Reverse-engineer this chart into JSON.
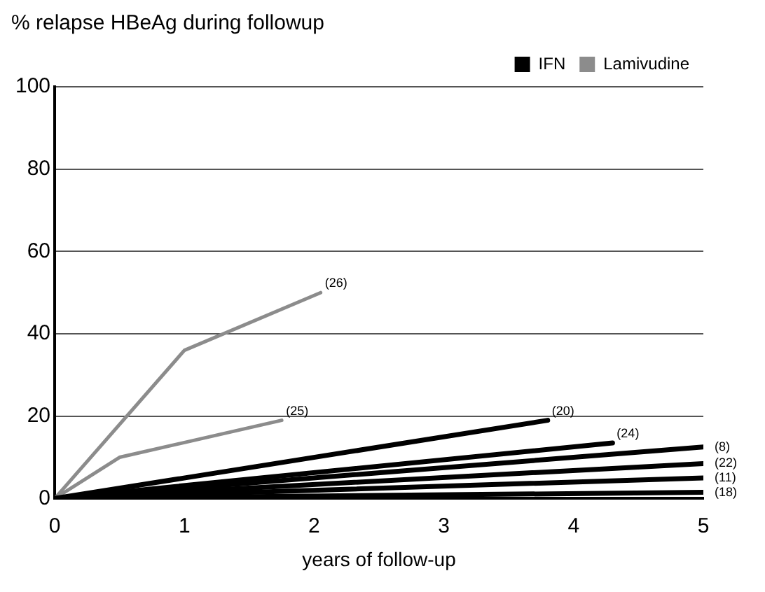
{
  "chart_data": {
    "type": "line",
    "title": "% relapse HBeAg during followup",
    "xlabel": "years of follow-up",
    "xlim": [
      0,
      5
    ],
    "xticks": [
      0,
      1,
      2,
      3,
      4,
      5
    ],
    "ylim": [
      0,
      100
    ],
    "yticks": [
      0,
      20,
      40,
      60,
      80,
      100
    ],
    "grid": "y",
    "legend": "top right",
    "marker": "none",
    "line_style": "solid",
    "series": [
      {
        "name": "IFN",
        "color": "#000000",
        "x": [
          0,
          3.8
        ],
        "values": [
          0,
          19
        ]
      },
      {
        "color": "#000000",
        "x": [
          0,
          4.3
        ],
        "values": [
          0,
          13.5
        ]
      },
      {
        "color": "#000000",
        "x": [
          0,
          5
        ],
        "values": [
          0,
          12.5
        ]
      },
      {
        "color": "#000000",
        "x": [
          0,
          5
        ],
        "values": [
          0,
          8.5
        ]
      },
      {
        "color": "#000000",
        "x": [
          0,
          5
        ],
        "values": [
          0,
          5
        ]
      },
      {
        "color": "#000000",
        "x": [
          0,
          5
        ],
        "values": [
          0,
          1.5
        ]
      },
      {
        "name": "Lamivudine",
        "color": "#8c8c8c",
        "x": [
          0,
          1,
          2.05
        ],
        "values": [
          0,
          36,
          50
        ]
      },
      {
        "color": "#8c8c8c",
        "x": [
          0,
          0.5,
          1.75
        ],
        "values": [
          0,
          10,
          19
        ]
      }
    ],
    "annotations": [
      {
        "text": "(26)",
        "x": 2.05,
        "y": 50
      },
      {
        "text": "(25)",
        "x": 1.75,
        "y": 19
      },
      {
        "text": "(20)",
        "x": 3.8,
        "y": 19
      },
      {
        "text": "(24)",
        "x": 4.3,
        "y": 13.5
      },
      {
        "text": "(8)",
        "x": 5,
        "y": 12.5
      },
      {
        "text": "(22)",
        "x": 5,
        "y": 8.5
      },
      {
        "text": "(11)",
        "x": 5,
        "y": 5
      },
      {
        "text": "(18)",
        "x": 5,
        "y": 1.5
      }
    ]
  }
}
